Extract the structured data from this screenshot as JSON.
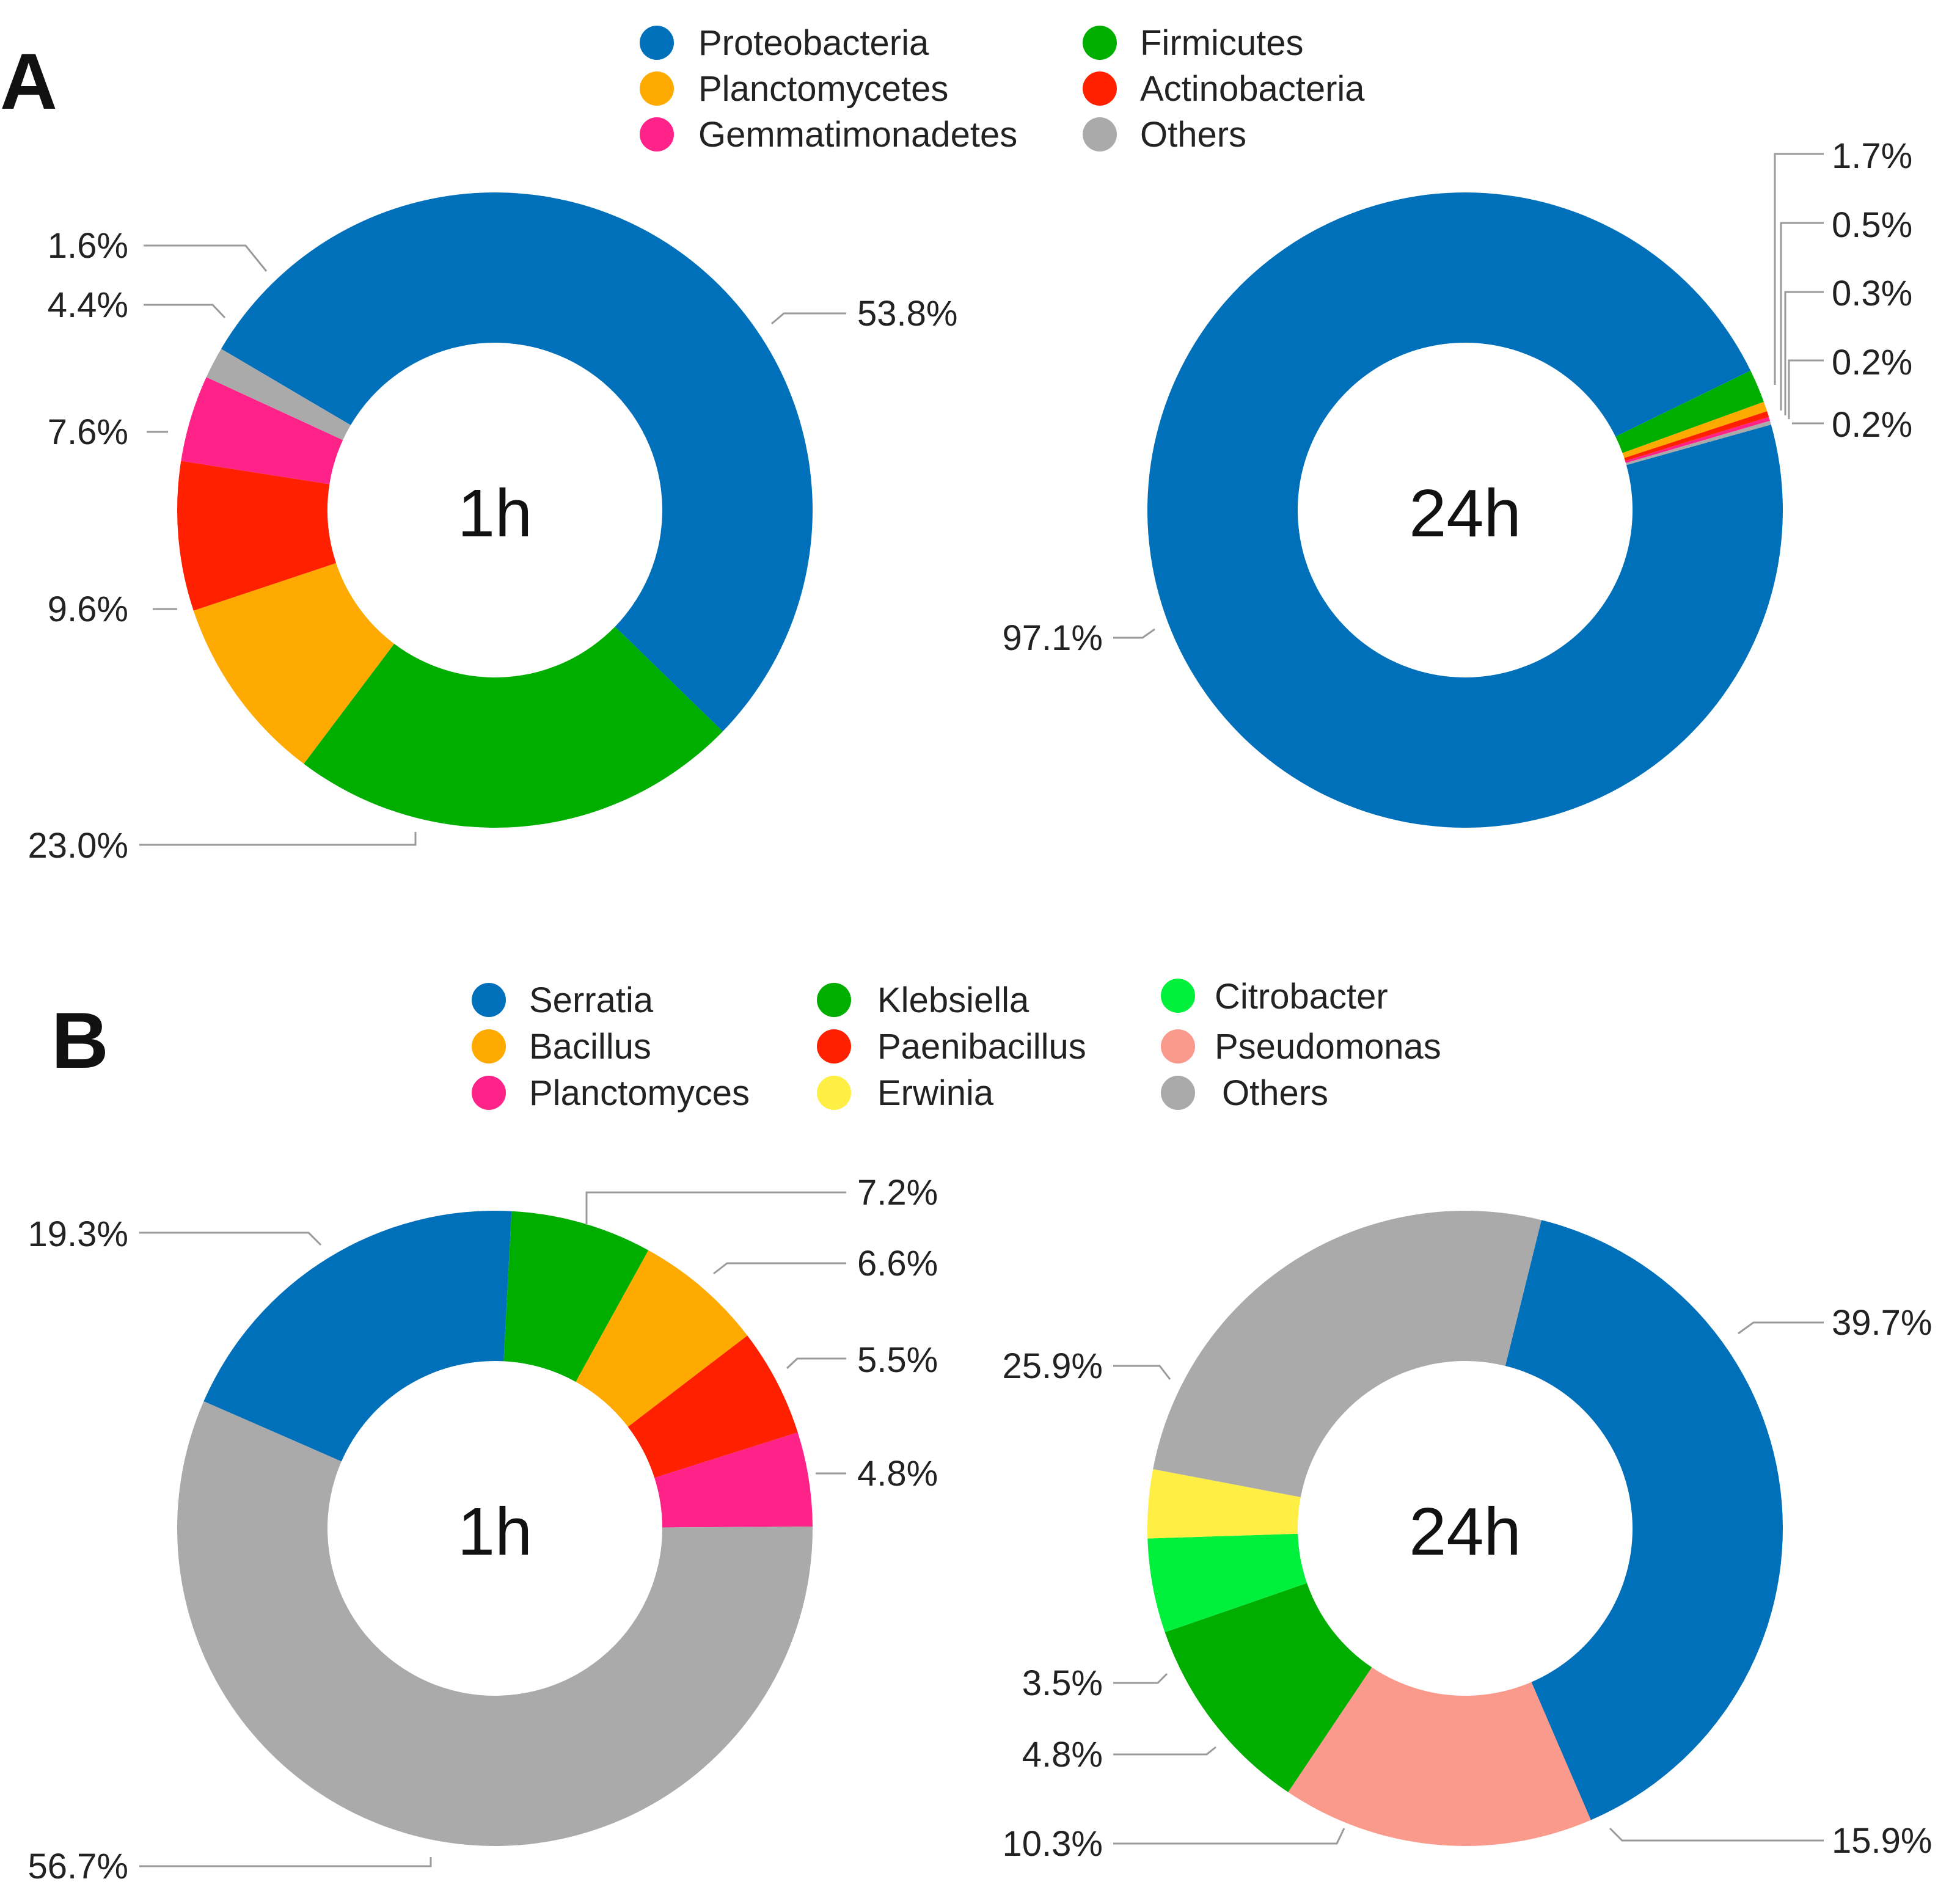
{
  "figure": {
    "panels": [
      {
        "letter": "A"
      },
      {
        "letter": "B"
      }
    ]
  },
  "chart_data": [
    {
      "type": "pie",
      "style": "donut",
      "panel": "A",
      "center_label": "1h",
      "start_category": "Proteobacteria",
      "direction": "clockwise",
      "legend": [
        "Proteobacteria",
        "Firmicutes",
        "Planctomycetes",
        "Actinobacteria",
        "Gemmatimonadetes",
        "Others"
      ],
      "slices": [
        {
          "name": "Proteobacteria",
          "value": 53.8,
          "label": "53.8%",
          "color": "#0070BA"
        },
        {
          "name": "Firmicutes",
          "value": 23.0,
          "label": "23.0%",
          "color": "#00AE00"
        },
        {
          "name": "Planctomycetes",
          "value": 9.6,
          "label": "9.6%",
          "color": "#FFAA00"
        },
        {
          "name": "Actinobacteria",
          "value": 7.6,
          "label": "7.6%",
          "color": "#FF2000"
        },
        {
          "name": "Gemmatimonadetes",
          "value": 4.4,
          "label": "4.4%",
          "color": "#FF2288"
        },
        {
          "name": "Others",
          "value": 1.6,
          "label": "1.6%",
          "color": "#AAAAAA"
        }
      ]
    },
    {
      "type": "pie",
      "style": "donut",
      "panel": "A",
      "center_label": "24h",
      "direction": "clockwise",
      "slices": [
        {
          "name": "Proteobacteria",
          "value": 97.1,
          "label": "97.1%",
          "color": "#0070BA"
        },
        {
          "name": "Firmicutes",
          "value": 1.7,
          "label": "1.7%",
          "color": "#00AE00"
        },
        {
          "name": "Planctomycetes",
          "value": 0.5,
          "label": "0.5%",
          "color": "#FFAA00"
        },
        {
          "name": "Actinobacteria",
          "value": 0.3,
          "label": "0.3%",
          "color": "#FF2000"
        },
        {
          "name": "Gemmatimonadetes",
          "value": 0.2,
          "label": "0.2%",
          "color": "#FF2288"
        },
        {
          "name": "Others",
          "value": 0.2,
          "label": "0.2%",
          "color": "#AAAAAA"
        }
      ]
    },
    {
      "type": "pie",
      "style": "donut",
      "panel": "B",
      "center_label": "1h",
      "direction": "clockwise",
      "legend": [
        "Serratia",
        "Klebsiella",
        "Citrobacter",
        "Bacillus",
        "Paenibacillus",
        "Pseudomonas",
        "Planctomyces",
        "Erwinia",
        "Others"
      ],
      "slices": [
        {
          "name": "Klebsiella",
          "value": 7.2,
          "label": "7.2%",
          "color": "#00AE00"
        },
        {
          "name": "Bacillus",
          "value": 6.6,
          "label": "6.6%",
          "color": "#FFAA00"
        },
        {
          "name": "Paenibacillus",
          "value": 5.5,
          "label": "5.5%",
          "color": "#FF2000"
        },
        {
          "name": "Planctomyces",
          "value": 4.8,
          "label": "4.8%",
          "color": "#FF2288"
        },
        {
          "name": "Others",
          "value": 56.7,
          "label": "56.7%",
          "color": "#AAAAAA"
        },
        {
          "name": "Serratia",
          "value": 19.3,
          "label": "19.3%",
          "color": "#0070BA"
        }
      ]
    },
    {
      "type": "pie",
      "style": "donut",
      "panel": "B",
      "center_label": "24h",
      "direction": "clockwise",
      "slices": [
        {
          "name": "Serratia",
          "value": 39.7,
          "label": "39.7%",
          "color": "#0070BA"
        },
        {
          "name": "Pseudomonas",
          "value": 15.9,
          "label": "15.9%",
          "color": "#FA9A8C"
        },
        {
          "name": "Klebsiella",
          "value": 10.3,
          "label": "10.3%",
          "color": "#00AE00"
        },
        {
          "name": "Citrobacter",
          "value": 4.8,
          "label": "4.8%",
          "color": "#00F03C"
        },
        {
          "name": "Erwinia",
          "value": 3.5,
          "label": "3.5%",
          "color": "#FFEE44"
        },
        {
          "name": "Others",
          "value": 25.9,
          "label": "25.9%",
          "color": "#AAAAAA"
        }
      ]
    }
  ]
}
